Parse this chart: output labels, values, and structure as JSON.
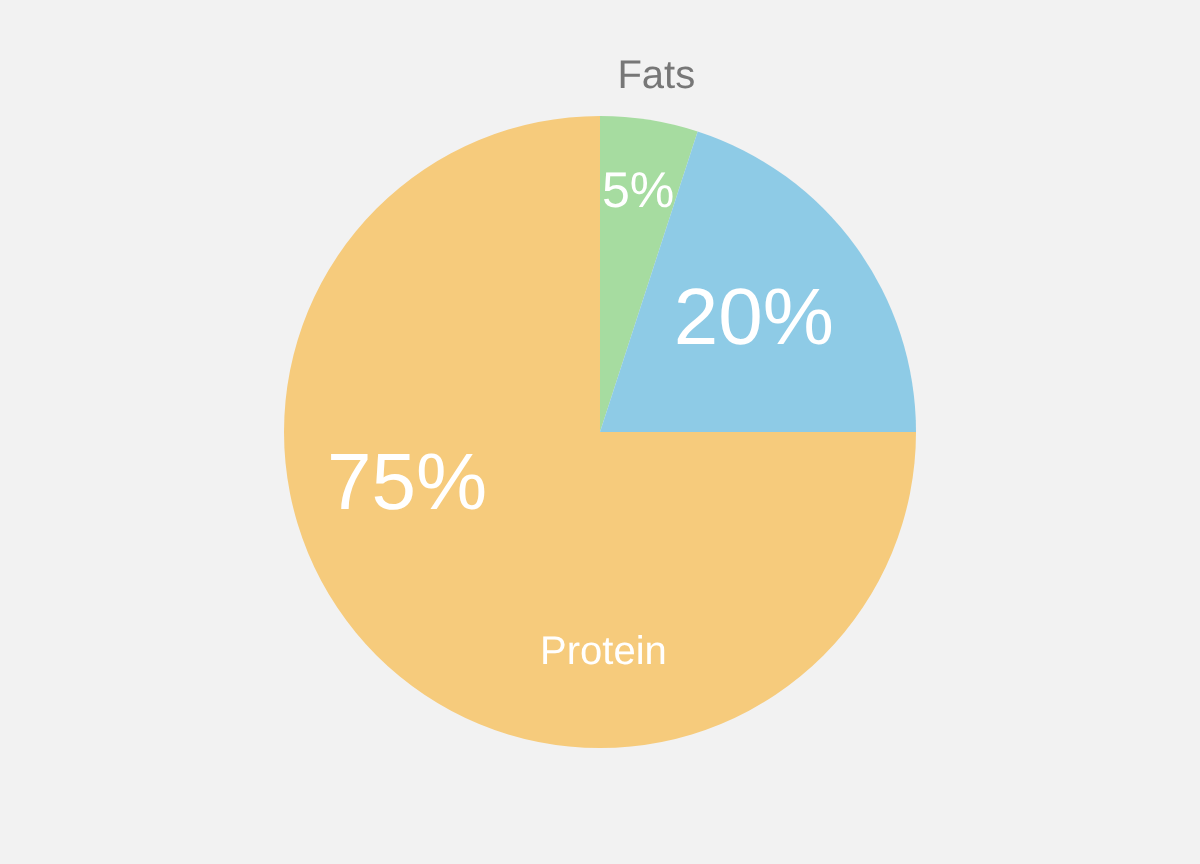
{
  "chart_data": {
    "type": "pie",
    "categories": [
      "Fats",
      null,
      "Protein"
    ],
    "values": [
      5,
      20,
      75
    ],
    "colors": [
      "#a6dca0",
      "#8ecbe6",
      "#f6cb7c"
    ],
    "value_labels": [
      "5%",
      "20%",
      "75%"
    ]
  }
}
